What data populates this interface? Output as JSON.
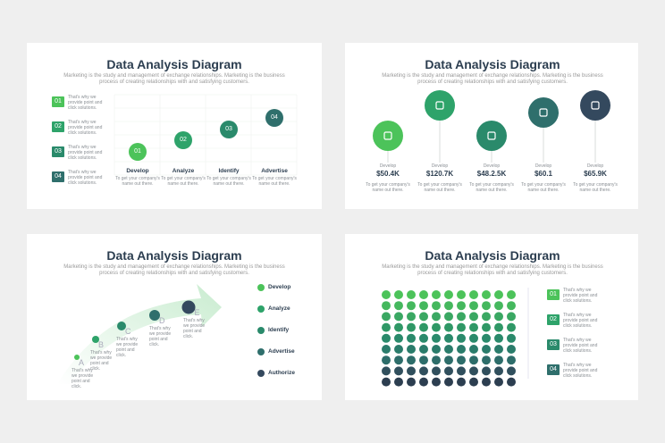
{
  "slides": [
    {
      "title": "Data Analysis Diagram",
      "subtitle": "Marketing is the study and management of exchange relationships. Marketing is the business process of creating relationships with and satisfying customers.",
      "items": [
        {
          "number": "01",
          "text": "That's why we provide point and click solutions."
        },
        {
          "number": "02",
          "text": "That's why we provide point and click solutions."
        },
        {
          "number": "03",
          "text": "That's why we provide point and click solutions."
        },
        {
          "number": "04",
          "text": "That's why we provide point and click solutions."
        }
      ],
      "steps": [
        {
          "number": "01",
          "label": "Develop",
          "text": "To get your company's name out there."
        },
        {
          "number": "02",
          "label": "Analyze",
          "text": "To get your company's name out there."
        },
        {
          "number": "03",
          "label": "Identify",
          "text": "To get your company's name out there."
        },
        {
          "number": "04",
          "label": "Advertise",
          "text": "To get your company's name out there."
        }
      ]
    },
    {
      "title": "Data Analysis Diagram",
      "subtitle": "Marketing is the study and management of exchange relationships. Marketing is the business process of creating relationships with and satisfying customers.",
      "stats": [
        {
          "label": "Develop",
          "value": "$50.4K",
          "text": "To get your company's name out there."
        },
        {
          "label": "Develop",
          "value": "$120.7K",
          "text": "To get your company's name out there."
        },
        {
          "label": "Develop",
          "value": "$48.2.5K",
          "text": "To get your company's name out there."
        },
        {
          "label": "Develop",
          "value": "$60.1",
          "text": "To get your company's name out there."
        },
        {
          "label": "Develop",
          "value": "$65.9K",
          "text": "To get your company's name out there."
        }
      ]
    },
    {
      "title": "Data Analysis Diagram",
      "subtitle": "Marketing is the study and management of exchange relationships. Marketing is the business process of creating relationships with and satisfying customers.",
      "points": [
        {
          "letter": "A",
          "text": "That's why we provide point and click."
        },
        {
          "letter": "B",
          "text": "That's why we provide point and click."
        },
        {
          "letter": "C",
          "text": "That's why we provide point and click."
        },
        {
          "letter": "D",
          "text": "That's why we provide point and click."
        },
        {
          "letter": "E",
          "text": "That's why we provide point and click."
        }
      ],
      "legend": [
        "Develop",
        "Analyze",
        "Identify",
        "Advertise",
        "Authorize"
      ]
    },
    {
      "title": "Data Analysis Diagram",
      "subtitle": "Marketing is the study and management of exchange relationships. Marketing is the business process of creating relationships with and satisfying customers.",
      "items": [
        {
          "number": "01",
          "text": "That's why we provide point and click solutions."
        },
        {
          "number": "02",
          "text": "That's why we provide point and click solutions."
        },
        {
          "number": "03",
          "text": "That's why we provide point and click solutions."
        },
        {
          "number": "04",
          "text": "That's why we provide point and click solutions."
        }
      ]
    }
  ]
}
